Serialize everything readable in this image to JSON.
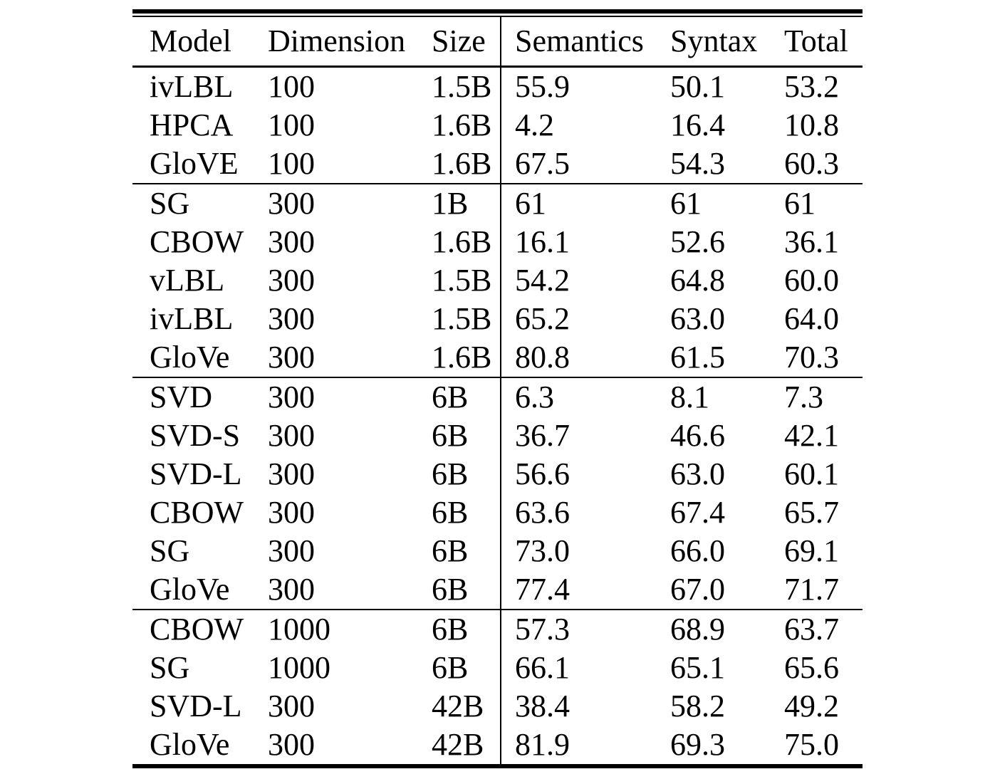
{
  "page": {
    "background_color": "#ffffff",
    "text_color": "#000000",
    "rule_color": "#000000"
  },
  "table": {
    "name": "word-analogy-results-table",
    "columns": [
      "Model",
      "Dimension",
      "Size",
      "Semantics",
      "Syntax",
      "Total"
    ],
    "column_keys": [
      "model",
      "dimension",
      "size",
      "semantics",
      "syntax",
      "total"
    ],
    "groups": [
      {
        "rows": [
          [
            "ivLBL",
            "100",
            "1.5B",
            "55.9",
            "50.1",
            "53.2"
          ],
          [
            "HPCA",
            "100",
            "1.6B",
            "4.2",
            "16.4",
            "10.8"
          ],
          [
            "GloVE",
            "100",
            "1.6B",
            "67.5",
            "54.3",
            "60.3"
          ]
        ]
      },
      {
        "rows": [
          [
            "SG",
            "300",
            "1B",
            "61",
            "61",
            "61"
          ],
          [
            "CBOW",
            "300",
            "1.6B",
            "16.1",
            "52.6",
            "36.1"
          ],
          [
            "vLBL",
            "300",
            "1.5B",
            "54.2",
            "64.8",
            "60.0"
          ],
          [
            "ivLBL",
            "300",
            "1.5B",
            "65.2",
            "63.0",
            "64.0"
          ],
          [
            "GloVe",
            "300",
            "1.6B",
            "80.8",
            "61.5",
            "70.3"
          ]
        ]
      },
      {
        "rows": [
          [
            "SVD",
            "300",
            "6B",
            "6.3",
            "8.1",
            "7.3"
          ],
          [
            "SVD-S",
            "300",
            "6B",
            "36.7",
            "46.6",
            "42.1"
          ],
          [
            "SVD-L",
            "300",
            "6B",
            "56.6",
            "63.0",
            "60.1"
          ],
          [
            "CBOW",
            "300",
            "6B",
            "63.6",
            "67.4",
            "65.7"
          ],
          [
            "SG",
            "300",
            "6B",
            "73.0",
            "66.0",
            "69.1"
          ],
          [
            "GloVe",
            "300",
            "6B",
            "77.4",
            "67.0",
            "71.7"
          ]
        ]
      },
      {
        "rows": [
          [
            "CBOW",
            "1000",
            "6B",
            "57.3",
            "68.9",
            "63.7"
          ],
          [
            "SG",
            "1000",
            "6B",
            "66.1",
            "65.1",
            "65.6"
          ],
          [
            "SVD-L",
            "300",
            "42B",
            "38.4",
            "58.2",
            "49.2"
          ],
          [
            "GloVe",
            "300",
            "42B",
            "81.9",
            "69.3",
            "75.0"
          ]
        ]
      }
    ]
  }
}
